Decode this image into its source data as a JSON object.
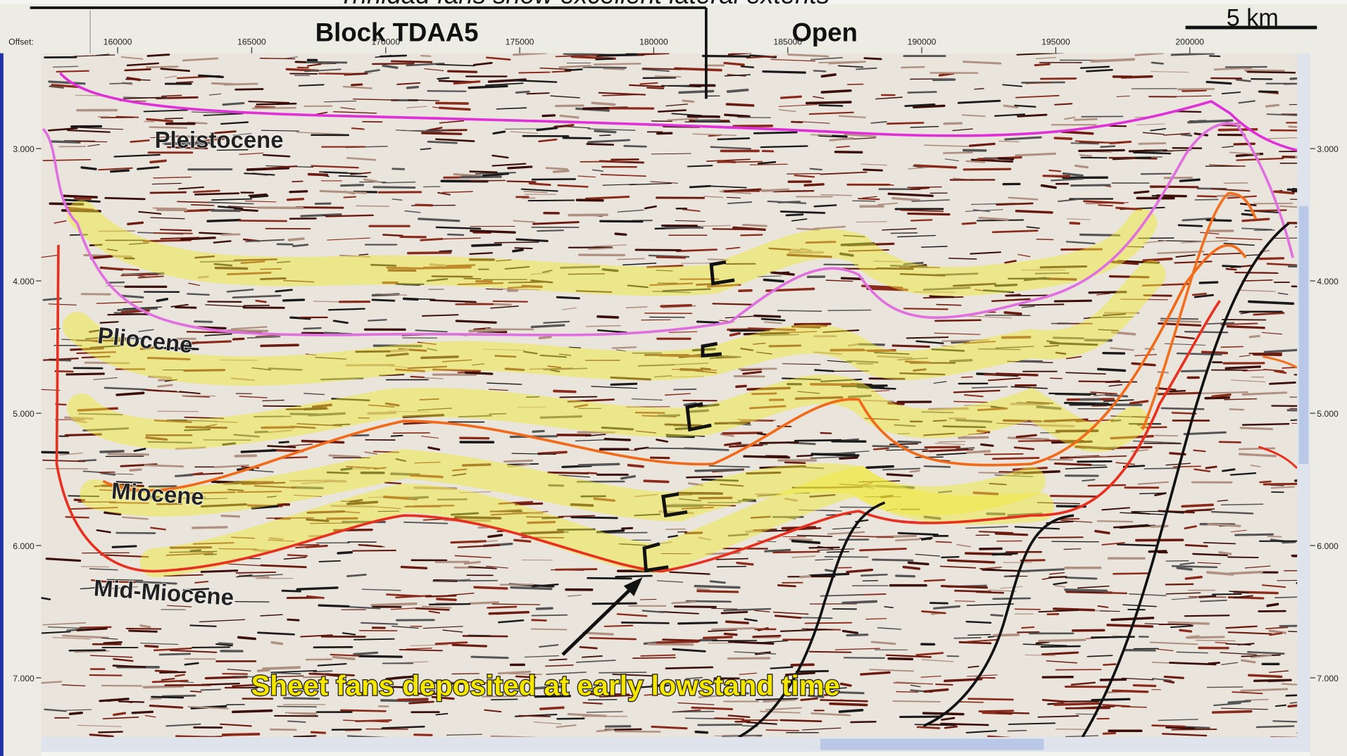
{
  "header": {
    "title": "Trinidad fans show excellent lateral extents",
    "scale_bar": "5 km",
    "offset_label": "Offset:"
  },
  "blocks": [
    "Block TDAA5",
    "Open"
  ],
  "offset_ticks": [
    "160000",
    "165000",
    "170000",
    "175000",
    "180000",
    "185000",
    "190000",
    "195000",
    "200000"
  ],
  "time_ticks": [
    "3.000",
    "4.000",
    "5.000",
    "6.000",
    "7.000"
  ],
  "formations": [
    "Pleistocene",
    "Pliocene",
    "Miocene",
    "Mid-Miocene"
  ],
  "annotation": "Sheet fans deposited at early lowstand time"
}
